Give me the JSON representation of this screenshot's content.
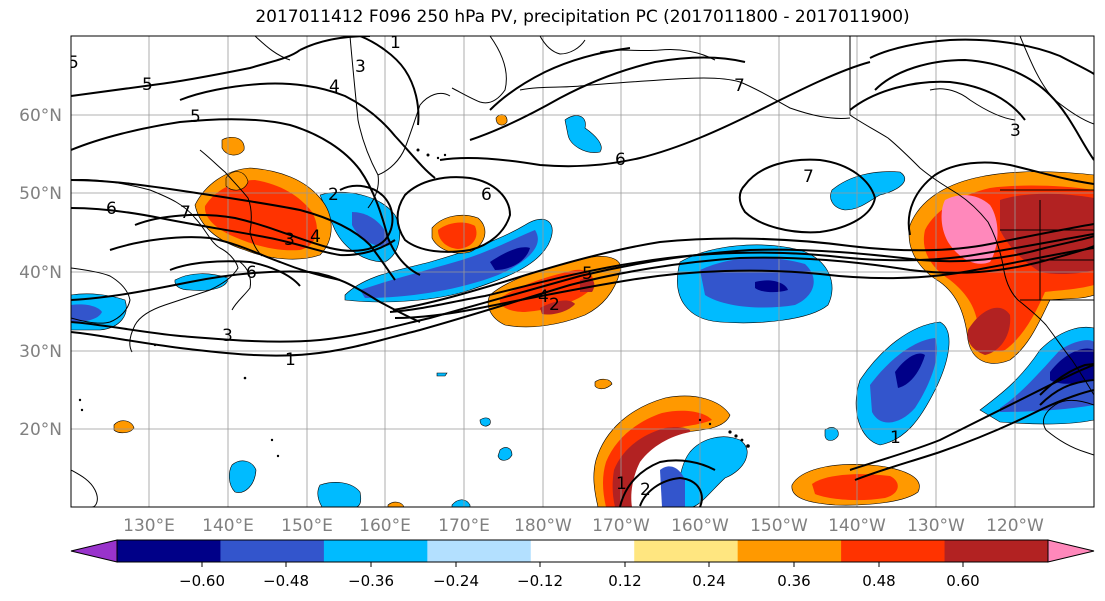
{
  "title": "2017011412 F096 250 hPa PV, precipitation PC (2017011800 - 2017011900)",
  "map": {
    "lat_labels": [
      "60°N",
      "50°N",
      "40°N",
      "30°N",
      "20°N"
    ],
    "lon_labels": [
      "130°E",
      "140°E",
      "150°E",
      "160°E",
      "170°E",
      "180°W",
      "170°W",
      "160°W",
      "150°W",
      "140°W",
      "130°W",
      "120°W"
    ],
    "contour_labels": [
      "5",
      "5",
      "4",
      "3",
      "1",
      "5",
      "6",
      "7",
      "2",
      "3",
      "4",
      "6",
      "6",
      "7",
      "6",
      "7",
      "3",
      "3",
      "1",
      "4",
      "2",
      "5",
      "1",
      "2",
      "1"
    ]
  },
  "colorbar": {
    "colors": [
      "#9933cc",
      "#000088",
      "#3355cc",
      "#00bbff",
      "#b3e0ff",
      "#ffffff",
      "#ffe680",
      "#ff9900",
      "#ff3300",
      "#b22222",
      "#ff88bb"
    ],
    "tick_labels": [
      "−0.60",
      "−0.48",
      "−0.36",
      "−0.24",
      "−0.12",
      "0.12",
      "0.24",
      "0.36",
      "0.48",
      "0.60"
    ]
  }
}
